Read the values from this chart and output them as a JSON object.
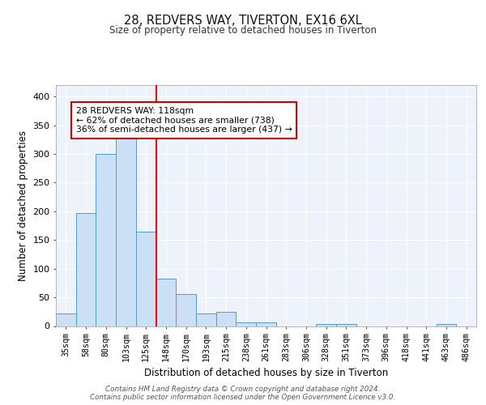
{
  "title1": "28, REDVERS WAY, TIVERTON, EX16 6XL",
  "title2": "Size of property relative to detached houses in Tiverton",
  "xlabel": "Distribution of detached houses by size in Tiverton",
  "ylabel": "Number of detached properties",
  "bar_labels": [
    "35sqm",
    "58sqm",
    "80sqm",
    "103sqm",
    "125sqm",
    "148sqm",
    "170sqm",
    "193sqm",
    "215sqm",
    "238sqm",
    "261sqm",
    "283sqm",
    "306sqm",
    "328sqm",
    "351sqm",
    "373sqm",
    "396sqm",
    "418sqm",
    "441sqm",
    "463sqm",
    "486sqm"
  ],
  "bar_values": [
    22,
    197,
    300,
    328,
    165,
    82,
    56,
    22,
    25,
    6,
    6,
    0,
    0,
    4,
    4,
    0,
    0,
    0,
    0,
    3,
    0
  ],
  "bar_color": "#cce0f5",
  "bar_edge_color": "#5599cc",
  "background_color": "#eef3fb",
  "grid_color": "#ffffff",
  "red_line_x": 4.5,
  "annotation_text": "28 REDVERS WAY: 118sqm\n← 62% of detached houses are smaller (738)\n36% of semi-detached houses are larger (437) →",
  "annotation_box_color": "#ffffff",
  "annotation_box_edge": "#cc0000",
  "footer": "Contains HM Land Registry data © Crown copyright and database right 2024.\nContains public sector information licensed under the Open Government Licence v3.0.",
  "ylim": [
    0,
    420
  ],
  "yticks": [
    0,
    50,
    100,
    150,
    200,
    250,
    300,
    350,
    400
  ]
}
